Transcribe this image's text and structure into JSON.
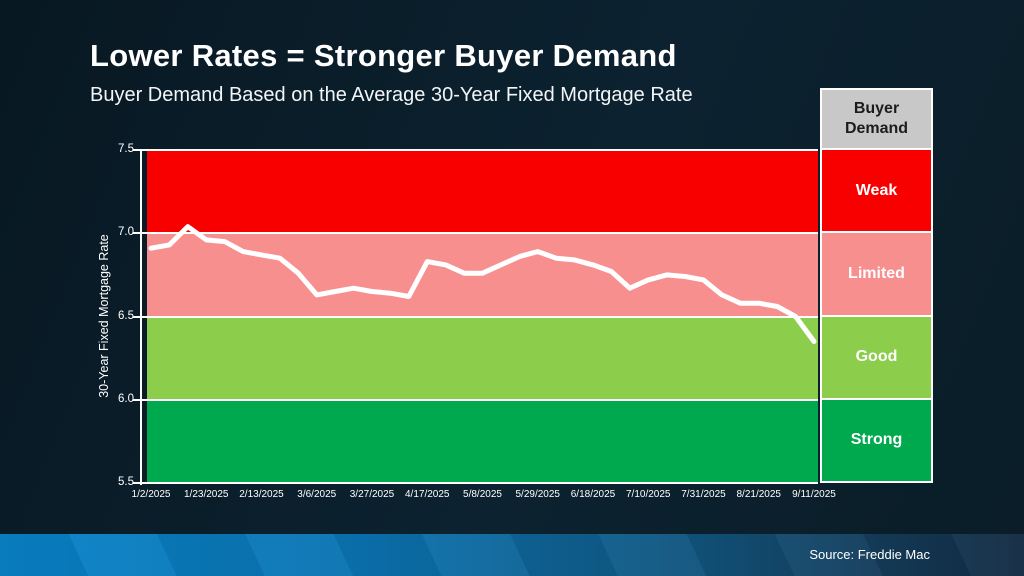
{
  "slide": {
    "title": "Lower Rates = Stronger Buyer Demand",
    "subtitle": "Buyer Demand Based on the Average 30-Year Fixed Mortgage Rate",
    "source": "Source: Freddie Mac"
  },
  "colors": {
    "background": "#0a1d28",
    "line": "#ffffff",
    "footer_blue": "#0883c9",
    "weak_red": "#f80000",
    "limited_pink": "#f78f8f",
    "good_light_green": "#8ccd4b",
    "strong_green": "#00a84e",
    "legend_header_bg": "#c8c8c8",
    "legend_header_text": "#1c1c1c"
  },
  "legend": {
    "header": "Buyer Demand",
    "header_bg": "#c8c8c8",
    "header_text_color": "#1c1c1c",
    "items": [
      {
        "label": "Weak",
        "color": "#f80000"
      },
      {
        "label": "Limited",
        "color": "#f78f8f"
      },
      {
        "label": "Good",
        "color": "#8ccd4b"
      },
      {
        "label": "Strong",
        "color": "#00a84e"
      }
    ]
  },
  "chart_data": {
    "type": "line",
    "title": "Buyer Demand Based on the Average 30-Year Fixed Mortgage Rate",
    "xlabel": "",
    "ylabel": "30-Year Fixed Mortgage Rate",
    "ylim": [
      5.5,
      7.5
    ],
    "yticks": [
      "7.5",
      "7.0",
      "6.5",
      "6.0",
      "5.5"
    ],
    "grid": true,
    "legend_position": "right",
    "x": [
      "1/2/2025",
      "1/9/2025",
      "1/16/2025",
      "1/23/2025",
      "1/30/2025",
      "2/6/2025",
      "2/13/2025",
      "2/20/2025",
      "2/27/2025",
      "3/6/2025",
      "3/13/2025",
      "3/20/2025",
      "3/27/2025",
      "4/3/2025",
      "4/10/2025",
      "4/17/2025",
      "4/24/2025",
      "5/1/2025",
      "5/8/2025",
      "5/15/2025",
      "5/22/2025",
      "5/29/2025",
      "6/5/2025",
      "6/12/2025",
      "6/18/2025",
      "6/26/2025",
      "7/3/2025",
      "7/10/2025",
      "7/17/2025",
      "7/24/2025",
      "7/31/2025",
      "8/7/2025",
      "8/14/2025",
      "8/21/2025",
      "8/28/2025",
      "9/4/2025",
      "9/11/2025"
    ],
    "x_tick_labels": [
      "1/2/2025",
      "1/23/2025",
      "2/13/2025",
      "3/6/2025",
      "3/27/2025",
      "4/17/2025",
      "5/8/2025",
      "5/29/2025",
      "6/18/2025",
      "7/10/2025",
      "7/31/2025",
      "8/21/2025",
      "9/11/2025"
    ],
    "series": [
      {
        "name": "30-Year Fixed Mortgage Rate",
        "values": [
          6.91,
          6.93,
          7.04,
          6.96,
          6.95,
          6.89,
          6.87,
          6.85,
          6.76,
          6.63,
          6.65,
          6.67,
          6.65,
          6.64,
          6.62,
          6.83,
          6.81,
          6.76,
          6.76,
          6.81,
          6.86,
          6.89,
          6.85,
          6.84,
          6.81,
          6.77,
          6.67,
          6.72,
          6.75,
          6.74,
          6.72,
          6.63,
          6.58,
          6.58,
          6.56,
          6.5,
          6.35
        ]
      }
    ],
    "bands": [
      {
        "from": 7.0,
        "to": 7.5,
        "label": "Weak",
        "color": "#f80000"
      },
      {
        "from": 6.5,
        "to": 7.0,
        "label": "Limited",
        "color": "#f78f8f"
      },
      {
        "from": 6.0,
        "to": 6.5,
        "label": "Good",
        "color": "#8ccd4b"
      },
      {
        "from": 5.5,
        "to": 6.0,
        "label": "Strong",
        "color": "#00a84e"
      }
    ]
  }
}
